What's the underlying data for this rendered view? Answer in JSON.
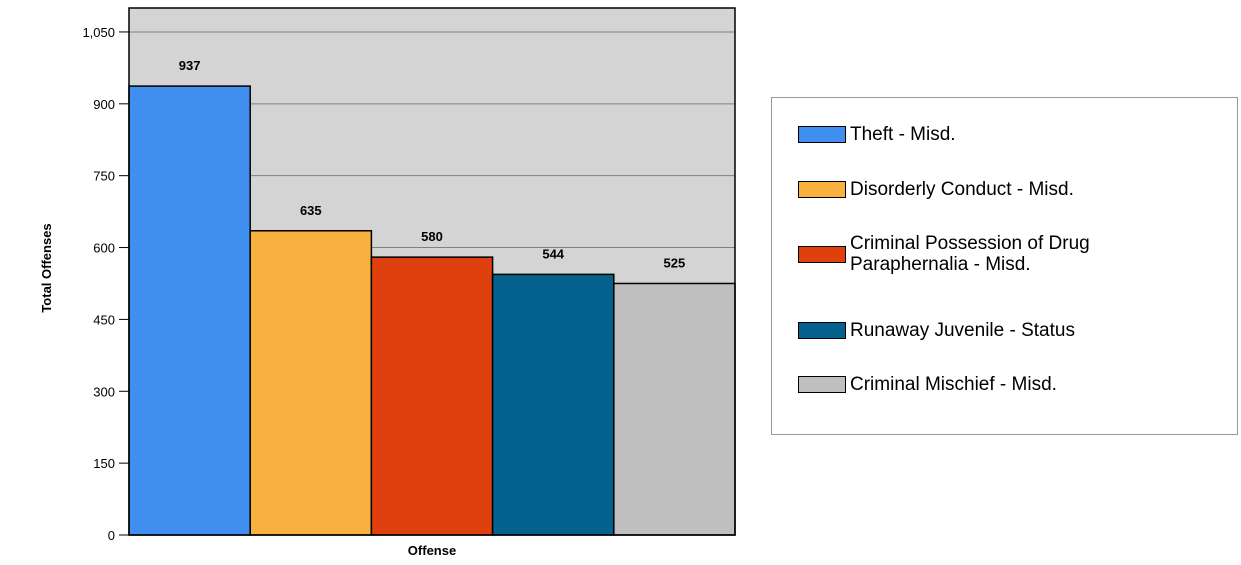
{
  "chart_data": {
    "type": "bar",
    "title": "",
    "xlabel": "Offense",
    "ylabel": "Total Offenses",
    "ylim": [
      0,
      1100
    ],
    "yticks": [
      0,
      150,
      300,
      450,
      600,
      750,
      900,
      1050
    ],
    "ytick_labels": [
      "0",
      "150",
      "300",
      "450",
      "600",
      "750",
      "900",
      "1,050"
    ],
    "grid": true,
    "legend_position": "right",
    "series": [
      {
        "name": "Theft - Misd.",
        "value": 937,
        "label": "937",
        "color": "#3f8ef0"
      },
      {
        "name": "Disorderly Conduct - Misd.",
        "value": 635,
        "label": "635",
        "color": "#f8b13f"
      },
      {
        "name": "Criminal Possession of Drug Paraphernalia - Misd.",
        "value": 580,
        "label": "580",
        "color": "#e0400e"
      },
      {
        "name": "Runaway Juvenile - Status",
        "value": 544,
        "label": "544",
        "color": "#05628f"
      },
      {
        "name": "Criminal Mischief - Misd.",
        "value": 525,
        "label": "525",
        "color": "#bfbfbf"
      }
    ],
    "plot_background": "#d4d4d4"
  }
}
